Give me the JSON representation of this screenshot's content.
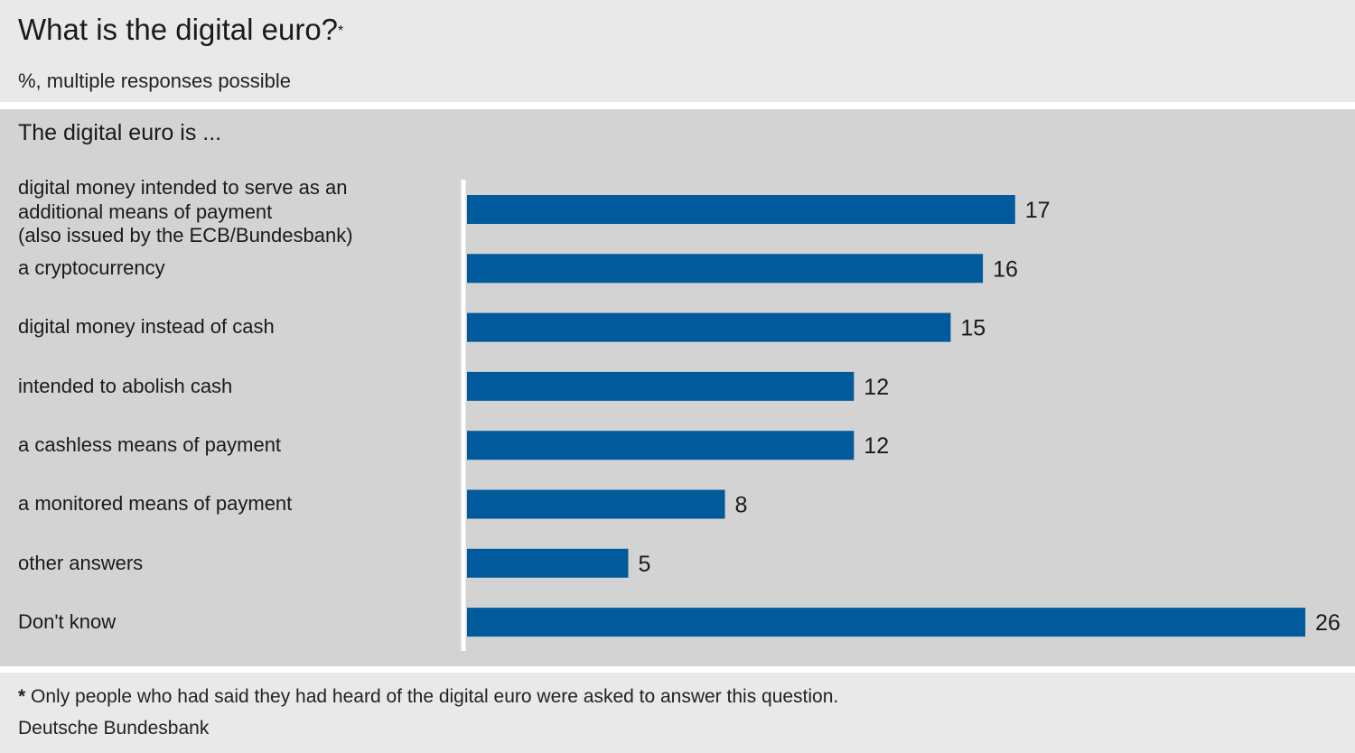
{
  "header": {
    "title": "What is the digital euro?",
    "title_mark": "*",
    "subtitle": "%, multiple responses possible"
  },
  "panel": {
    "heading": "The digital euro is  ..."
  },
  "chart_data": {
    "type": "bar",
    "orientation": "horizontal",
    "categories": [
      "digital money intended to serve as an\nadditional means of payment\n(also issued by the ECB/Bundesbank)",
      "a cryptocurrency",
      "digital money instead of cash",
      "intended to abolish cash",
      "a cashless means of payment",
      "a monitored means of payment",
      "other answers",
      "Don't know"
    ],
    "values": [
      17,
      16,
      15,
      12,
      12,
      8,
      5,
      26
    ],
    "unit": "%",
    "xlim": [
      0,
      26
    ],
    "grid": false,
    "legend": "none",
    "bar_color": "#005a9b",
    "axis_color": "#ffffff"
  },
  "footer": {
    "footnote_mark": "*",
    "footnote_text": " Only people who had said they had heard of the digital euro were asked to answer this question.",
    "source": "Deutsche Bundesbank"
  },
  "colors": {
    "header_bg": "#e9e9e9",
    "panel_bg": "#d3d3d3",
    "bar": "#005a9b"
  }
}
